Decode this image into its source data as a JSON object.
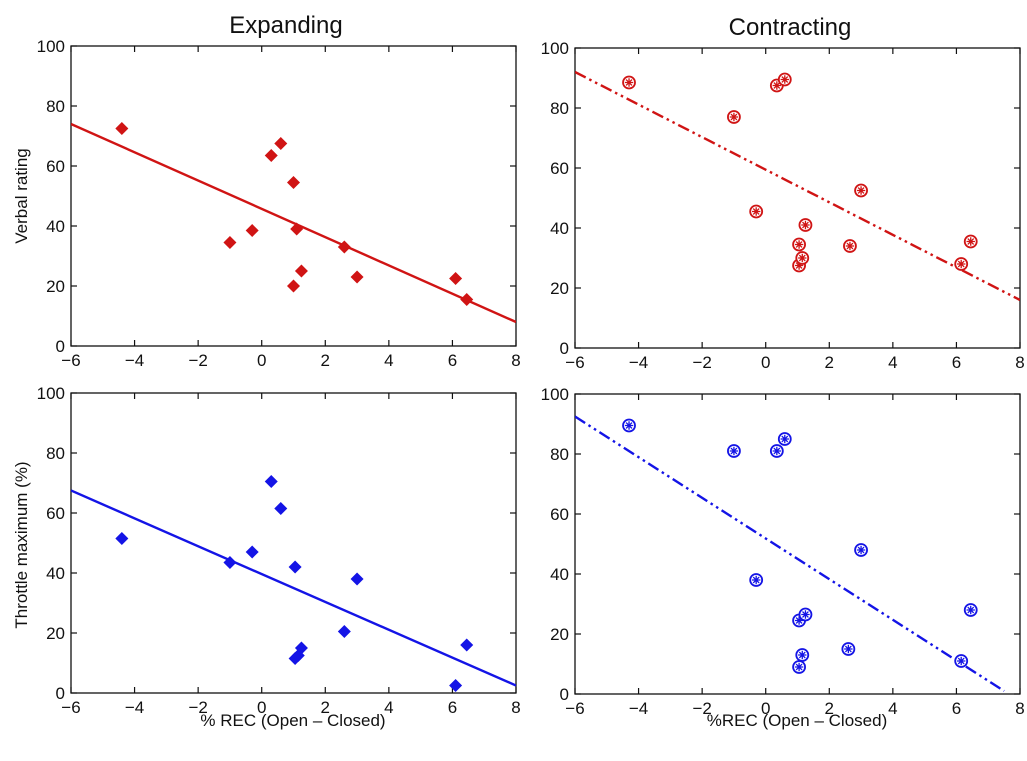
{
  "column_titles": {
    "left": "Expanding",
    "right": "Contracting"
  },
  "x_labels": {
    "left": "% REC (Open – Closed)",
    "right": "%REC (Open – Closed)"
  },
  "y_labels": {
    "top": "Verbal rating",
    "bottom": "Throttle maximum (%)"
  },
  "colors": {
    "red": "#d01414",
    "blue": "#1414e6"
  },
  "chart_data": [
    {
      "id": "expanding-verbal",
      "type": "scatter",
      "title": "Expanding",
      "xlabel": "",
      "ylabel": "Verbal rating",
      "xlim": [
        -6,
        8
      ],
      "ylim": [
        0,
        100
      ],
      "xticks": [
        -6,
        -4,
        -2,
        0,
        2,
        4,
        6,
        8
      ],
      "yticks": [
        0,
        20,
        40,
        60,
        80,
        100
      ],
      "marker": "diamond",
      "color": "#d01414",
      "points": [
        [
          -4.4,
          72.5
        ],
        [
          -1.0,
          34.5
        ],
        [
          -0.3,
          38.5
        ],
        [
          0.3,
          63.5
        ],
        [
          0.6,
          67.5
        ],
        [
          1.0,
          54.5
        ],
        [
          1.0,
          20.0
        ],
        [
          1.1,
          39.0
        ],
        [
          1.25,
          25.0
        ],
        [
          2.6,
          33.0
        ],
        [
          3.0,
          23.0
        ],
        [
          6.1,
          22.5
        ],
        [
          6.45,
          15.5
        ]
      ],
      "fit_line": {
        "style": "solid",
        "x": [
          -6,
          8
        ],
        "y": [
          74,
          8
        ]
      }
    },
    {
      "id": "contracting-verbal",
      "type": "scatter",
      "title": "Contracting",
      "xlabel": "",
      "ylabel": "",
      "xlim": [
        -6,
        8
      ],
      "ylim": [
        0,
        100
      ],
      "xticks": [
        -6,
        -4,
        -2,
        0,
        2,
        4,
        6,
        8
      ],
      "yticks": [
        0,
        20,
        40,
        60,
        80,
        100
      ],
      "marker": "circled-asterisk",
      "color": "#d01414",
      "points": [
        [
          -4.3,
          88.5
        ],
        [
          -1.0,
          77.0
        ],
        [
          -0.3,
          45.5
        ],
        [
          0.35,
          87.5
        ],
        [
          0.6,
          89.5
        ],
        [
          1.05,
          34.5
        ],
        [
          1.05,
          27.5
        ],
        [
          1.15,
          30.0
        ],
        [
          1.25,
          41.0
        ],
        [
          2.65,
          34.0
        ],
        [
          3.0,
          52.5
        ],
        [
          6.15,
          28.0
        ],
        [
          6.45,
          35.5
        ]
      ],
      "fit_line": {
        "style": "dash-dot-dot",
        "x": [
          -6,
          8
        ],
        "y": [
          92,
          16
        ]
      }
    },
    {
      "id": "expanding-throttle",
      "type": "scatter",
      "title": "",
      "xlabel": "% REC (Open – Closed)",
      "ylabel": "Throttle maximum (%)",
      "xlim": [
        -6,
        8
      ],
      "ylim": [
        0,
        100
      ],
      "xticks": [
        -6,
        -4,
        -2,
        0,
        2,
        4,
        6,
        8
      ],
      "yticks": [
        0,
        20,
        40,
        60,
        80,
        100
      ],
      "marker": "diamond",
      "color": "#1414e6",
      "points": [
        [
          -4.4,
          51.5
        ],
        [
          -1.0,
          43.5
        ],
        [
          -0.3,
          47.0
        ],
        [
          0.3,
          70.5
        ],
        [
          0.6,
          61.5
        ],
        [
          1.05,
          42.0
        ],
        [
          1.05,
          11.5
        ],
        [
          1.15,
          12.5
        ],
        [
          1.25,
          15.0
        ],
        [
          2.6,
          20.5
        ],
        [
          3.0,
          38.0
        ],
        [
          6.1,
          2.5
        ],
        [
          6.45,
          16.0
        ]
      ],
      "fit_line": {
        "style": "solid",
        "x": [
          -6,
          8
        ],
        "y": [
          67.5,
          2.5
        ]
      }
    },
    {
      "id": "contracting-throttle",
      "type": "scatter",
      "title": "",
      "xlabel": "%REC (Open – Closed)",
      "ylabel": "",
      "xlim": [
        -6,
        8
      ],
      "ylim": [
        0,
        100
      ],
      "xticks": [
        -6,
        -4,
        -2,
        0,
        2,
        4,
        6,
        8
      ],
      "yticks": [
        0,
        20,
        40,
        60,
        80,
        100
      ],
      "marker": "circled-asterisk",
      "color": "#1414e6",
      "points": [
        [
          -4.3,
          89.5
        ],
        [
          -1.0,
          81.0
        ],
        [
          -0.3,
          38.0
        ],
        [
          0.35,
          81.0
        ],
        [
          0.6,
          85.0
        ],
        [
          1.05,
          24.5
        ],
        [
          1.05,
          9.0
        ],
        [
          1.15,
          13.0
        ],
        [
          1.25,
          26.5
        ],
        [
          2.6,
          15.0
        ],
        [
          3.0,
          48.0
        ],
        [
          6.15,
          11.0
        ],
        [
          6.45,
          28.0
        ]
      ],
      "fit_line": {
        "style": "dash-dot-dot",
        "x": [
          -6,
          7.5
        ],
        "y": [
          92.5,
          1
        ]
      }
    }
  ]
}
